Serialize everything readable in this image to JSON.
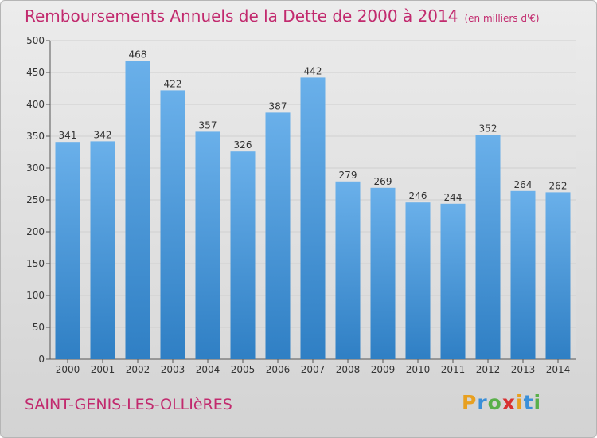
{
  "header": {
    "title": "Remboursements Annuels de la Dette de 2000 à 2014",
    "unit": "(en milliers d'€)"
  },
  "footer": {
    "commune": "SAINT-GENIS-LES-OLLIèRES",
    "logo_letters": [
      "P",
      "r",
      "o",
      "x",
      "i",
      "t",
      "i"
    ],
    "logo_colors": [
      "#e8a020",
      "#3a8fd8",
      "#5ab04a",
      "#d83030",
      "#e8a020",
      "#3a8fd8",
      "#5ab04a"
    ]
  },
  "colors": {
    "bar_top": "#6ab0ea",
    "bar_bottom": "#2f7fc4",
    "grid": "#cfcfcf",
    "title": "#c22a6e"
  },
  "chart_data": {
    "type": "bar",
    "title": "Remboursements Annuels de la Dette de 2000 à 2014",
    "subtitle": "(en milliers d'€)",
    "xlabel": "",
    "ylabel": "",
    "categories": [
      "2000",
      "2001",
      "2002",
      "2003",
      "2004",
      "2005",
      "2006",
      "2007",
      "2008",
      "2009",
      "2010",
      "2011",
      "2012",
      "2013",
      "2014"
    ],
    "values": [
      341,
      342,
      468,
      422,
      357,
      326,
      387,
      442,
      279,
      269,
      246,
      244,
      352,
      264,
      262
    ],
    "ylim": [
      0,
      500
    ],
    "yticks": [
      0,
      50,
      100,
      150,
      200,
      250,
      300,
      350,
      400,
      450,
      500
    ],
    "grid": true,
    "data_labels": true
  }
}
